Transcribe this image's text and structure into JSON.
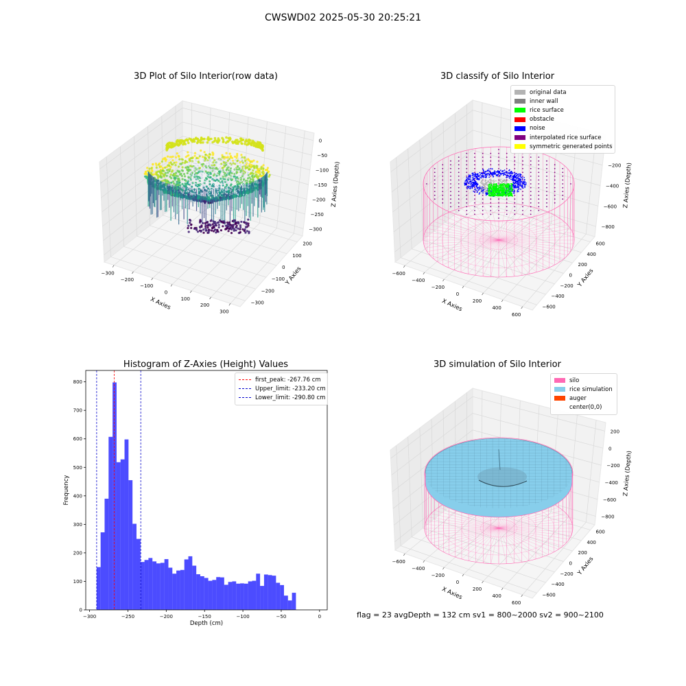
{
  "suptitle": "CWSWD02 2025-05-30 20:25:21",
  "footer": "flag = 23  avgDepth = 132 cm  sv1 = 800~2000  sv2 = 900~2100",
  "chart_data": [
    {
      "type": "scatter",
      "title": "3D Plot of Silo Interior(row data)",
      "xlabel": "X Axies",
      "ylabel": "Y Axies",
      "zlabel": "Z Axies (Depth)",
      "xticks": [
        -300,
        -200,
        -100,
        0,
        100,
        200,
        300
      ],
      "yticks": [
        -300,
        -200,
        -100,
        0,
        100,
        200
      ],
      "zticks": [
        0,
        -50,
        -100,
        -150,
        -200,
        -250,
        -300
      ],
      "colormap": "viridis"
    },
    {
      "type": "scatter",
      "title": "3D classify of Silo Interior",
      "xlabel": "X Axies",
      "ylabel": "Y Axies",
      "zlabel": "Z Axies (Depth)",
      "xticks": [
        -600,
        -400,
        -200,
        0,
        200,
        400,
        600
      ],
      "yticks": [
        -600,
        -400,
        -200,
        0,
        200,
        400,
        600
      ],
      "zticks": [
        0,
        -200,
        -400,
        -600,
        -800
      ],
      "legend": [
        {
          "label": "original data",
          "color": "#b3b3b3"
        },
        {
          "label": "inner wall",
          "color": "#808080"
        },
        {
          "label": "rice surface",
          "color": "#00ff00"
        },
        {
          "label": "obstacle",
          "color": "#ff0000"
        },
        {
          "label": "noise",
          "color": "#0000ff"
        },
        {
          "label": "interpolated rice surface",
          "color": "#800080"
        },
        {
          "label": "symmetric generated points",
          "color": "#ffff00"
        }
      ]
    },
    {
      "type": "bar",
      "title": "Histogram of Z-Axies (Height) Values",
      "xlabel": "Depth (cm)",
      "ylabel": "Frequency",
      "xlim": [
        -305,
        10
      ],
      "ylim": [
        0,
        840
      ],
      "xticks": [
        -300,
        -250,
        -200,
        -150,
        -100,
        -50,
        0
      ],
      "yticks": [
        0,
        100,
        200,
        300,
        400,
        500,
        600,
        700,
        800
      ],
      "bin_start": -290.8,
      "bin_width": 5.2,
      "values": [
        150,
        272,
        390,
        607,
        798,
        518,
        528,
        598,
        455,
        302,
        249,
        168,
        175,
        182,
        170,
        163,
        165,
        178,
        148,
        127,
        138,
        140,
        177,
        188,
        155,
        125,
        118,
        112,
        102,
        105,
        115,
        114,
        88,
        98,
        100,
        92,
        93,
        92,
        100,
        102,
        127,
        84,
        124,
        122,
        120,
        95,
        87,
        50,
        33,
        60
      ],
      "bar_color": "#0000ff",
      "lines": [
        {
          "label": "first_peak: -267.76 cm",
          "value": -267.76,
          "color": "#ff0000"
        },
        {
          "label": "Upper_limit: -233.20 cm",
          "value": -233.2,
          "color": "#0000cc"
        },
        {
          "label": "Lower_limit: -290.80 cm",
          "value": -290.8,
          "color": "#0000cc"
        }
      ]
    },
    {
      "type": "scatter",
      "title": "3D simulation of Silo Interior",
      "xlabel": "X Axies",
      "ylabel": "Y Axies",
      "zlabel": "Z Axies (Depth)",
      "xticks": [
        -600,
        -400,
        -200,
        0,
        200,
        400,
        600
      ],
      "yticks": [
        -600,
        -400,
        -200,
        0,
        200,
        400,
        600
      ],
      "zticks": [
        200,
        0,
        -200,
        -400,
        -600,
        -800
      ],
      "legend": [
        {
          "label": "silo",
          "color": "#ff69b4"
        },
        {
          "label": "rice simulation",
          "color": "#87ceeb"
        },
        {
          "label": "auger",
          "color": "#ff4500"
        },
        {
          "label": "center(0,0)",
          "color": "#ffffff"
        }
      ]
    }
  ]
}
